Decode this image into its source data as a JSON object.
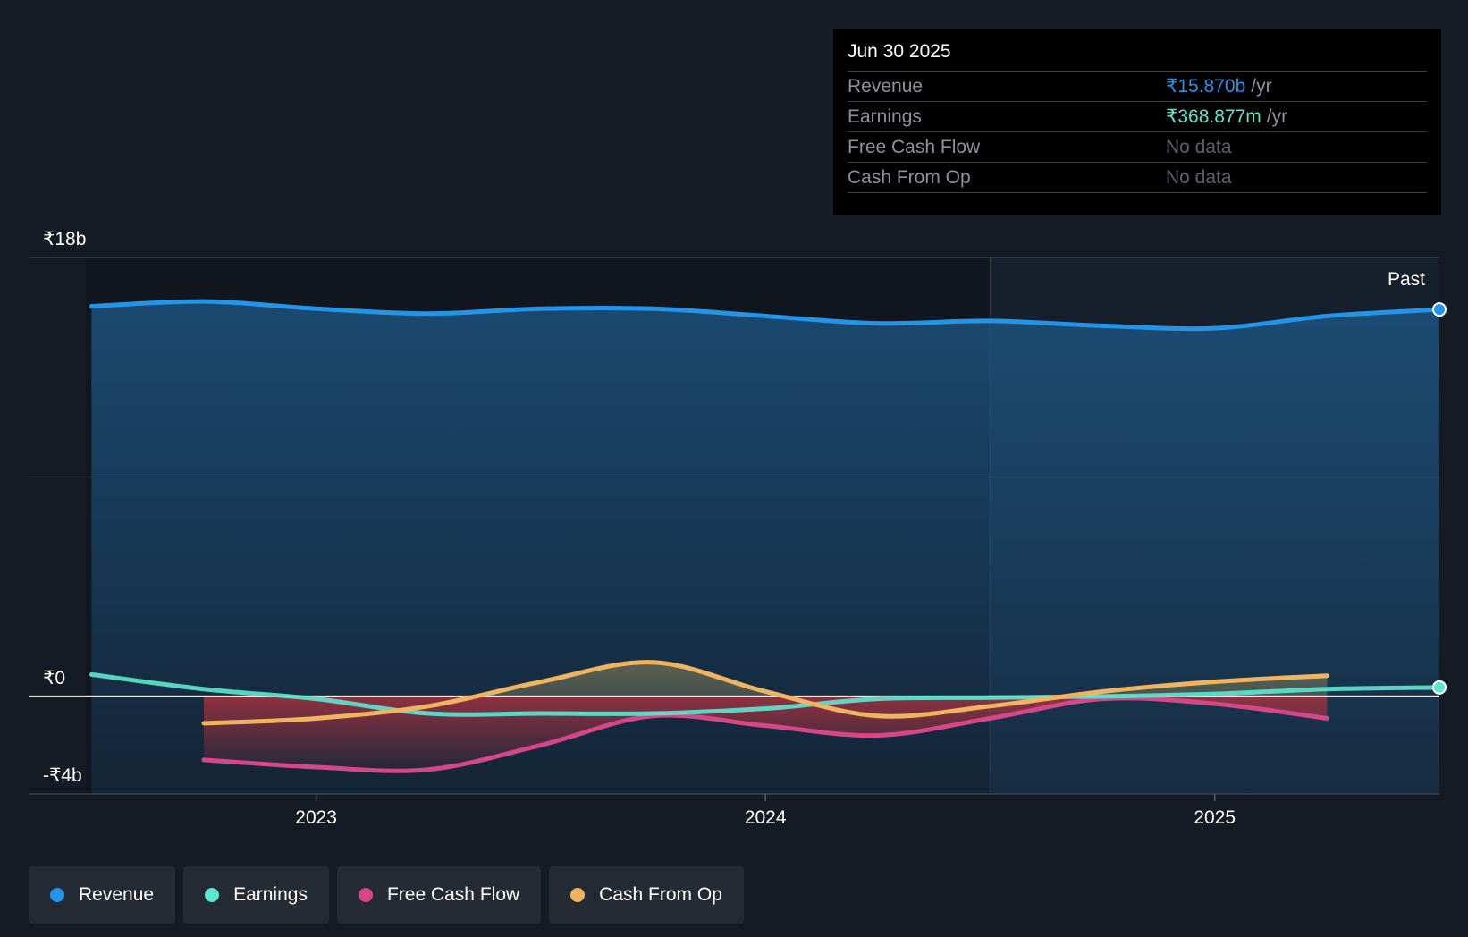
{
  "tooltip": {
    "date": "Jun 30 2025",
    "rows": [
      {
        "label": "Revenue",
        "value": "₹15.870b",
        "unit": "/yr"
      },
      {
        "label": "Earnings",
        "value": "₹368.877m",
        "unit": "/yr"
      },
      {
        "label": "Free Cash Flow",
        "value": "No data"
      },
      {
        "label": "Cash From Op",
        "value": "No data"
      }
    ]
  },
  "colors": {
    "revenue": "#2394e8",
    "earnings": "#5ee6d0",
    "fcf": "#d6478a",
    "cfo": "#f0b460",
    "background": "#151b24"
  },
  "legend": [
    {
      "label": "Revenue",
      "color": "#2394e8"
    },
    {
      "label": "Earnings",
      "color": "#5ee6d0"
    },
    {
      "label": "Free Cash Flow",
      "color": "#d6478a"
    },
    {
      "label": "Cash From Op",
      "color": "#f0b460"
    }
  ],
  "chart_data": {
    "type": "line",
    "title": "",
    "xlabel": "",
    "ylabel": "",
    "ylim": [
      -4,
      18
    ],
    "xlim": [
      2022.36,
      2025.5
    ],
    "y_tick_labels": [
      {
        "value": 18,
        "label": "₹18b"
      },
      {
        "value": 0,
        "label": "₹0"
      },
      {
        "value": -4,
        "label": "-₹4b"
      }
    ],
    "x_ticks": [
      {
        "value": 2023.0,
        "label": "2023"
      },
      {
        "value": 2024.0,
        "label": "2024"
      },
      {
        "value": 2025.0,
        "label": "2025"
      }
    ],
    "past_label": "Past",
    "past_start": 2024.5,
    "series": [
      {
        "name": "Revenue",
        "key": "revenue",
        "x": [
          2022.5,
          2022.75,
          2023.0,
          2023.25,
          2023.5,
          2023.75,
          2024.0,
          2024.25,
          2024.5,
          2024.75,
          2025.0,
          2025.25,
          2025.5
        ],
        "values": [
          16.0,
          16.2,
          15.9,
          15.7,
          15.9,
          15.9,
          15.6,
          15.3,
          15.4,
          15.2,
          15.1,
          15.6,
          15.87
        ]
      },
      {
        "name": "Earnings",
        "key": "earnings",
        "x": [
          2022.5,
          2022.75,
          2023.0,
          2023.25,
          2023.5,
          2023.75,
          2024.0,
          2024.25,
          2024.5,
          2024.75,
          2025.0,
          2025.25,
          2025.5
        ],
        "values": [
          0.9,
          0.3,
          -0.1,
          -0.7,
          -0.7,
          -0.7,
          -0.5,
          -0.1,
          -0.05,
          0.0,
          0.1,
          0.3,
          0.37
        ]
      },
      {
        "name": "Free Cash Flow",
        "key": "fcf",
        "x": [
          2022.75,
          2023.0,
          2023.25,
          2023.5,
          2023.75,
          2024.0,
          2024.25,
          2024.5,
          2024.75,
          2025.0,
          2025.25
        ],
        "values": [
          -2.6,
          -2.9,
          -3.0,
          -2.0,
          -0.8,
          -1.2,
          -1.6,
          -0.9,
          -0.1,
          -0.3,
          -0.9
        ]
      },
      {
        "name": "Cash From Op",
        "key": "cfo",
        "x": [
          2022.75,
          2023.0,
          2023.25,
          2023.5,
          2023.75,
          2024.0,
          2024.25,
          2024.5,
          2024.75,
          2025.0,
          2025.25
        ],
        "values": [
          -1.1,
          -0.9,
          -0.4,
          0.6,
          1.4,
          0.2,
          -0.8,
          -0.4,
          0.2,
          0.6,
          0.85
        ]
      }
    ]
  }
}
